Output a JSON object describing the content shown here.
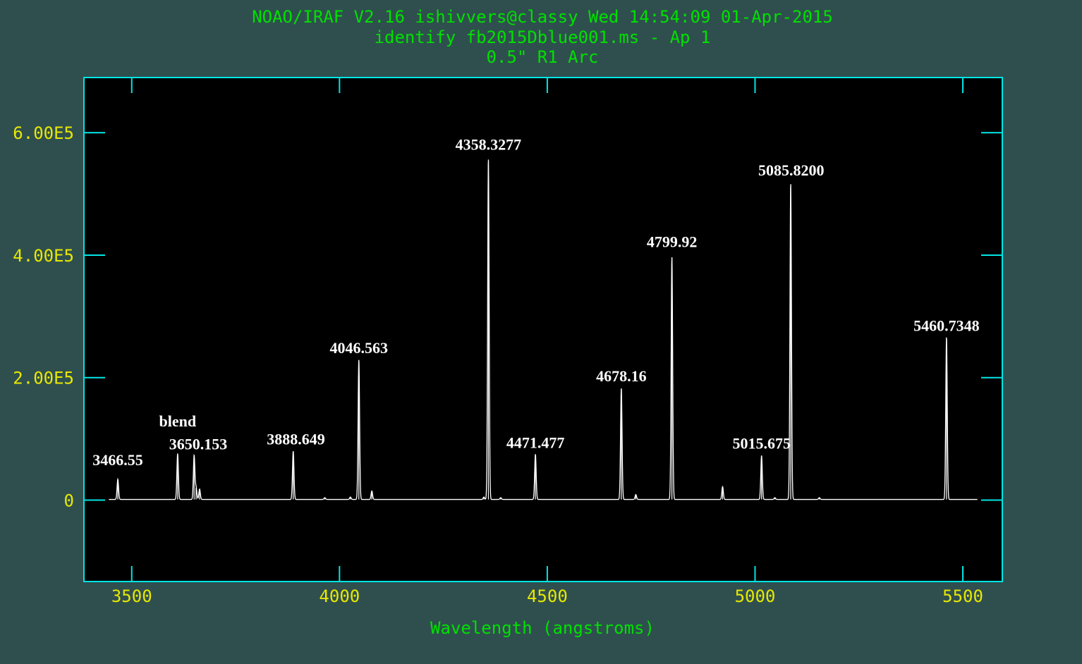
{
  "header": {
    "line1": "NOAO/IRAF V2.16 ishivvers@classy Wed 14:54:09 01-Apr-2015",
    "line2": "identify fb2015Dblue001.ms - Ap 1",
    "line3": "0.5\" R1 Arc"
  },
  "colors": {
    "background": "#2f4f4f",
    "plot_background": "#000000",
    "frame": "#00e5e5",
    "header_text": "#00e000",
    "tick_labels": "#e8e800",
    "spectrum": "#ffffff",
    "line_labels": "#ffffff"
  },
  "chart_data": {
    "type": "line",
    "title": "",
    "xlabel": "Wavelength (angstroms)",
    "ylabel": "",
    "xlim": [
      3385,
      5595
    ],
    "ylim": [
      -133000,
      690000
    ],
    "x_ticks": [
      3500,
      4000,
      4500,
      5000,
      5500
    ],
    "x_tick_labels": [
      "3500",
      "4000",
      "4500",
      "5000",
      "5500"
    ],
    "y_ticks": [
      0,
      200000,
      400000,
      600000
    ],
    "y_tick_labels": [
      "0",
      "2.00E5",
      "4.00E5",
      "6.00E5"
    ],
    "x_minor_ticks": [
      3500,
      4000,
      4500,
      5000,
      5500
    ],
    "spectrum_range": [
      3445,
      5535
    ],
    "baseline": 1000,
    "series": [
      {
        "lines": [
          {
            "x": 3466.55,
            "y": 33000
          },
          {
            "x": 3610.5,
            "y": 75000
          },
          {
            "x": 3650.153,
            "y": 72000
          },
          {
            "x": 3654.8,
            "y": 20000
          },
          {
            "x": 3663.3,
            "y": 17000
          },
          {
            "x": 3888.649,
            "y": 79000
          },
          {
            "x": 3964.7,
            "y": 3000
          },
          {
            "x": 4026.2,
            "y": 4000
          },
          {
            "x": 4046.563,
            "y": 228000
          },
          {
            "x": 4077.8,
            "y": 14000
          },
          {
            "x": 4347.5,
            "y": 4000
          },
          {
            "x": 4358.3277,
            "y": 556000
          },
          {
            "x": 4387.9,
            "y": 3000
          },
          {
            "x": 4471.477,
            "y": 74000
          },
          {
            "x": 4678.16,
            "y": 182000
          },
          {
            "x": 4713.1,
            "y": 8000
          },
          {
            "x": 4799.92,
            "y": 396000
          },
          {
            "x": 4921.9,
            "y": 21000
          },
          {
            "x": 5015.675,
            "y": 72000
          },
          {
            "x": 5047.7,
            "y": 3000
          },
          {
            "x": 5085.82,
            "y": 516000
          },
          {
            "x": 5154.7,
            "y": 3000
          },
          {
            "x": 5460.7348,
            "y": 265000
          }
        ]
      }
    ],
    "annotations": [
      {
        "text": "3466.55",
        "x": 3466.55,
        "y": 57000
      },
      {
        "text": "blend",
        "x": 3610.5,
        "y": 120000
      },
      {
        "text": "3650.153",
        "x": 3660,
        "y": 83000
      },
      {
        "text": "3888.649",
        "x": 3895,
        "y": 91000
      },
      {
        "text": "4046.563",
        "x": 4046.563,
        "y": 240000
      },
      {
        "text": "4358.3277",
        "x": 4358.3277,
        "y": 572000
      },
      {
        "text": "4471.477",
        "x": 4471.477,
        "y": 85000
      },
      {
        "text": "4678.16",
        "x": 4678.16,
        "y": 194000
      },
      {
        "text": "4799.92",
        "x": 4799.92,
        "y": 413000
      },
      {
        "text": "5015.675",
        "x": 5015.675,
        "y": 84000
      },
      {
        "text": "5085.8200",
        "x": 5087,
        "y": 530000
      },
      {
        "text": "5460.7348",
        "x": 5460.7348,
        "y": 276000
      }
    ],
    "grid": false,
    "legend": "none"
  }
}
